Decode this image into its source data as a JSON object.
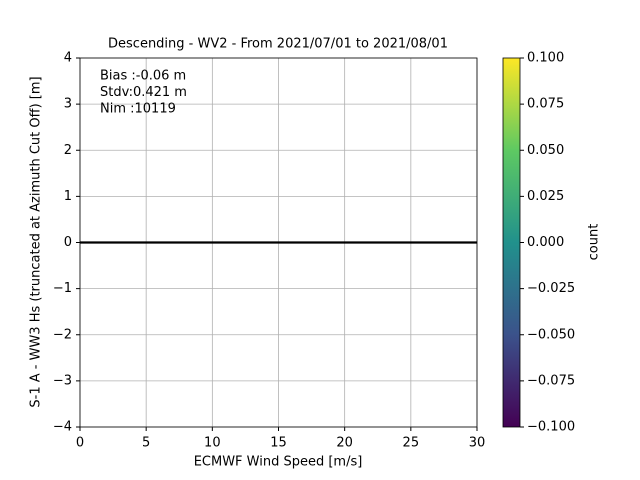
{
  "chart_data": {
    "type": "hist2d",
    "title": "Descending - WV2 - From 2021/07/01 to 2021/08/01",
    "xlabel": "ECMWF Wind Speed [m/s]",
    "ylabel": "S-1 A - WW3 Hs (truncated at Azimuth Cut Off) [m]",
    "xlim": [
      0,
      30
    ],
    "xticks": [
      0,
      5,
      10,
      15,
      20,
      25,
      30
    ],
    "ylim": [
      -4,
      4
    ],
    "yticks": [
      {
        "value": -4,
        "label": "−4"
      },
      {
        "value": -3,
        "label": "−3"
      },
      {
        "value": -2,
        "label": "−2"
      },
      {
        "value": -1,
        "label": "−1"
      },
      0,
      1,
      2,
      3,
      4
    ],
    "grid": true,
    "hline": 0,
    "hline_color": "#000000",
    "annotations": [
      "Bias :-0.06 m",
      "Stdv:0.421 m",
      "Nim :10119"
    ],
    "colorbar": {
      "label": "count",
      "colormap": "viridis",
      "clim": [
        -0.1,
        0.1
      ],
      "ticks": [
        {
          "value": -0.1,
          "label": "−0.100"
        },
        {
          "value": -0.075,
          "label": "−0.075"
        },
        {
          "value": -0.05,
          "label": "−0.050"
        },
        {
          "value": -0.025,
          "label": "−0.025"
        },
        {
          "value": 0,
          "label": "0.000"
        },
        {
          "value": 0.025,
          "label": "0.025"
        },
        {
          "value": 0.05,
          "label": "0.050"
        },
        {
          "value": 0.075,
          "label": "0.075"
        },
        {
          "value": 0.1,
          "label": "0.100"
        }
      ]
    }
  }
}
